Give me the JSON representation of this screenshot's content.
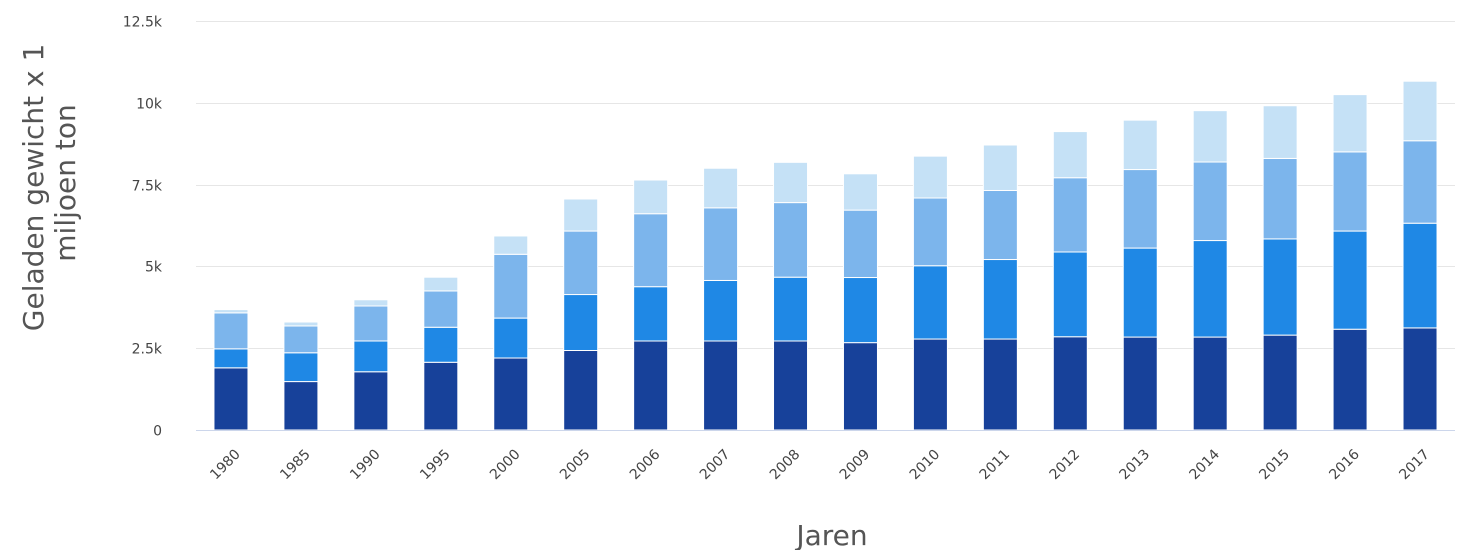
{
  "chart_data": {
    "type": "bar",
    "stacked": true,
    "xlabel": "Jaren",
    "ylabel_lines": [
      "Geladen gewicht x 1",
      "miljoen ton"
    ],
    "ylim": [
      0,
      12500
    ],
    "y_ticks": [
      0,
      2500,
      5000,
      7500,
      10000,
      12500
    ],
    "y_tick_labels": [
      "0",
      "2.5k",
      "5k",
      "7.5k",
      "10k",
      "12.5k"
    ],
    "grid": true,
    "legend": "none",
    "categories": [
      "1980",
      "1985",
      "1990",
      "1995",
      "2000",
      "2005",
      "2006",
      "2007",
      "2008",
      "2009",
      "2010",
      "2011",
      "2012",
      "2013",
      "2014",
      "2015",
      "2016",
      "2017"
    ],
    "series": [
      {
        "color": "#17419a",
        "values": [
          1900,
          1480,
          1780,
          2070,
          2200,
          2430,
          2720,
          2720,
          2720,
          2670,
          2780,
          2780,
          2850,
          2840,
          2840,
          2900,
          3080,
          3120
        ]
      },
      {
        "color": "#1f88e5",
        "values": [
          580,
          880,
          940,
          1070,
          1220,
          1710,
          1660,
          1850,
          1950,
          1990,
          2240,
          2430,
          2590,
          2720,
          2950,
          2940,
          3000,
          3200
        ]
      },
      {
        "color": "#7cb5ec",
        "values": [
          1100,
          820,
          1070,
          1110,
          1950,
          1940,
          2230,
          2220,
          2280,
          2060,
          2070,
          2110,
          2270,
          2400,
          2400,
          2460,
          2420,
          2520
        ]
      },
      {
        "color": "#c5e1f6",
        "values": [
          100,
          120,
          190,
          420,
          560,
          980,
          1030,
          1210,
          1230,
          1110,
          1280,
          1390,
          1410,
          1510,
          1570,
          1610,
          1750,
          1820
        ]
      }
    ]
  }
}
